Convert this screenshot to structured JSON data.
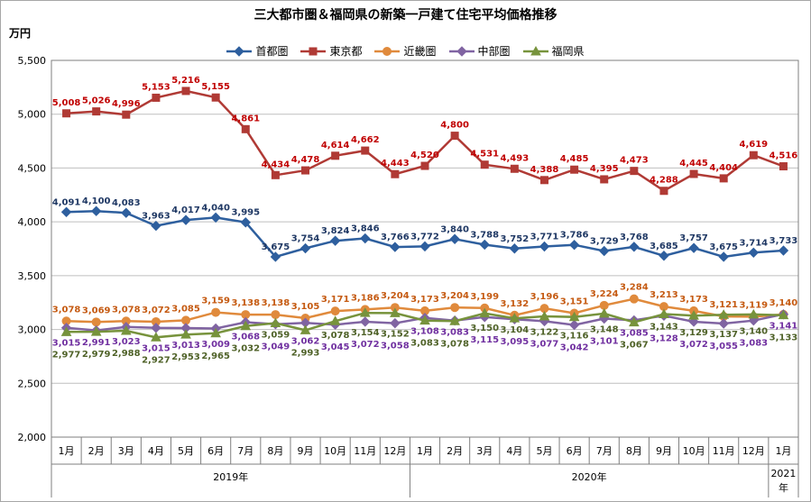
{
  "chart_data": {
    "type": "line",
    "title": "三大都市圏＆福岡県の新築一戸建て住宅平均価格推移",
    "ylabel": "万円",
    "ylim": [
      2000,
      5500
    ],
    "yticks": [
      "2,000",
      "2,500",
      "3,000",
      "3,500",
      "4,000",
      "4,500",
      "5,000",
      "5,500"
    ],
    "grid": true,
    "legend_position": "top-center",
    "categories": [
      "1月",
      "2月",
      "3月",
      "4月",
      "5月",
      "6月",
      "7月",
      "8月",
      "9月",
      "10月",
      "11月",
      "12月",
      "1月",
      "2月",
      "3月",
      "4月",
      "5月",
      "6月",
      "7月",
      "8月",
      "9月",
      "10月",
      "11月",
      "12月",
      "1月"
    ],
    "year_groups": [
      {
        "label": "2019年",
        "count": 12
      },
      {
        "label": "2020年",
        "count": 12
      },
      {
        "label": "2021年",
        "count": 1
      }
    ],
    "series": [
      {
        "name": "首都圏",
        "color": "#2e5f9e",
        "label_color": "#1f3864",
        "marker": "diamond",
        "values": [
          4091,
          4100,
          4083,
          3963,
          4017,
          4040,
          3995,
          3675,
          3754,
          3824,
          3846,
          3766,
          3772,
          3840,
          3788,
          3752,
          3771,
          3786,
          3729,
          3768,
          3685,
          3757,
          3675,
          3714,
          3733
        ],
        "labels": [
          "4,091",
          "4,100",
          "4,083",
          "3,963",
          "4,017",
          "4,040",
          "3,995",
          "3,675",
          "3,754",
          "3,824",
          "3,846",
          "3,766",
          "3,772",
          "3,840",
          "3,788",
          "3,752",
          "3,771",
          "3,786",
          "3,729",
          "3,768",
          "3,685",
          "3,757",
          "3,675",
          "3,714",
          "3,733"
        ]
      },
      {
        "name": "東京都",
        "color": "#b03a35",
        "label_color": "#c00000",
        "marker": "square",
        "values": [
          5008,
          5026,
          4996,
          5153,
          5216,
          5155,
          4861,
          4434,
          4478,
          4614,
          4662,
          4443,
          4520,
          4800,
          4531,
          4493,
          4388,
          4485,
          4395,
          4473,
          4288,
          4445,
          4404,
          4619,
          4516
        ],
        "labels": [
          "5,008",
          "5,026",
          "4,996",
          "5,153",
          "5,216",
          "5,155",
          "4,861",
          "4,434",
          "4,478",
          "4,614",
          "4,662",
          "4,443",
          "4,520",
          "4,800",
          "4,531",
          "4,493",
          "4,388",
          "4,485",
          "4,395",
          "4,473",
          "4,288",
          "4,445",
          "4,404",
          "4,619",
          "4,516"
        ]
      },
      {
        "name": "近畿圏",
        "color": "#e08a3c",
        "label_color": "#c55a11",
        "marker": "circle",
        "values": [
          3078,
          3069,
          3078,
          3072,
          3085,
          3159,
          3138,
          3138,
          3105,
          3171,
          3186,
          3204,
          3173,
          3204,
          3199,
          3132,
          3196,
          3151,
          3224,
          3284,
          3213,
          3173,
          3121,
          3119,
          3140
        ],
        "labels": [
          "3,078",
          "3,069",
          "3,078",
          "3,072",
          "3,085",
          "3,159",
          "3,138",
          "3,138",
          "3,105",
          "3,171",
          "3,186",
          "3,204",
          "3,173",
          "3,204",
          "3,199",
          "3,132",
          "3,196",
          "3,151",
          "3,224",
          "3,284",
          "3,213",
          "3,173",
          "3,121",
          "3,119",
          "3,140"
        ]
      },
      {
        "name": "中部圏",
        "color": "#8064a2",
        "label_color": "#7030a0",
        "marker": "diamond",
        "values": [
          3015,
          2991,
          3023,
          3015,
          3013,
          3009,
          3068,
          3049,
          3062,
          3045,
          3072,
          3058,
          3108,
          3083,
          3115,
          3095,
          3077,
          3042,
          3101,
          3085,
          3128,
          3072,
          3055,
          3083,
          3141
        ],
        "labels": [
          "3,015",
          "2,991",
          "3,023",
          "3,015",
          "3,013",
          "3,009",
          "3,068",
          "3,049",
          "3,062",
          "3,045",
          "3,072",
          "3,058",
          "3,108",
          "3,083",
          "3,115",
          "3,095",
          "3,077",
          "3,042",
          "3,101",
          "3,085",
          "3,128",
          "3,072",
          "3,055",
          "3,083",
          "3,141"
        ]
      },
      {
        "name": "福岡県",
        "color": "#77933c",
        "label_color": "#4f6228",
        "marker": "triangle",
        "values": [
          2977,
          2979,
          2988,
          2927,
          2953,
          2965,
          3032,
          3059,
          2993,
          3078,
          3154,
          3152,
          3083,
          3078,
          3150,
          3104,
          3122,
          3116,
          3148,
          3067,
          3143,
          3129,
          3137,
          3140,
          3133
        ],
        "labels": [
          "2,977",
          "2,979",
          "2,988",
          "2,927",
          "2,953",
          "2,965",
          "3,032",
          "3,059",
          "2,993",
          "3,078",
          "3,154",
          "3,152",
          "3,083",
          "3,078",
          "3,150",
          "3,104",
          "3,122",
          "3,116",
          "3,148",
          "3,067",
          "3,143",
          "3,129",
          "3,137",
          "3,140",
          "3,133"
        ]
      }
    ]
  }
}
